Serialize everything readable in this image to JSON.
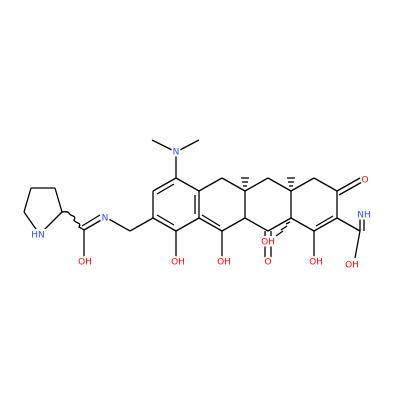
{
  "molecule": {
    "labels": [
      "N",
      "O",
      "HN",
      "N",
      "OH",
      "OH",
      "OH",
      "O",
      "OH",
      "OH",
      "NH",
      "OH"
    ]
  }
}
